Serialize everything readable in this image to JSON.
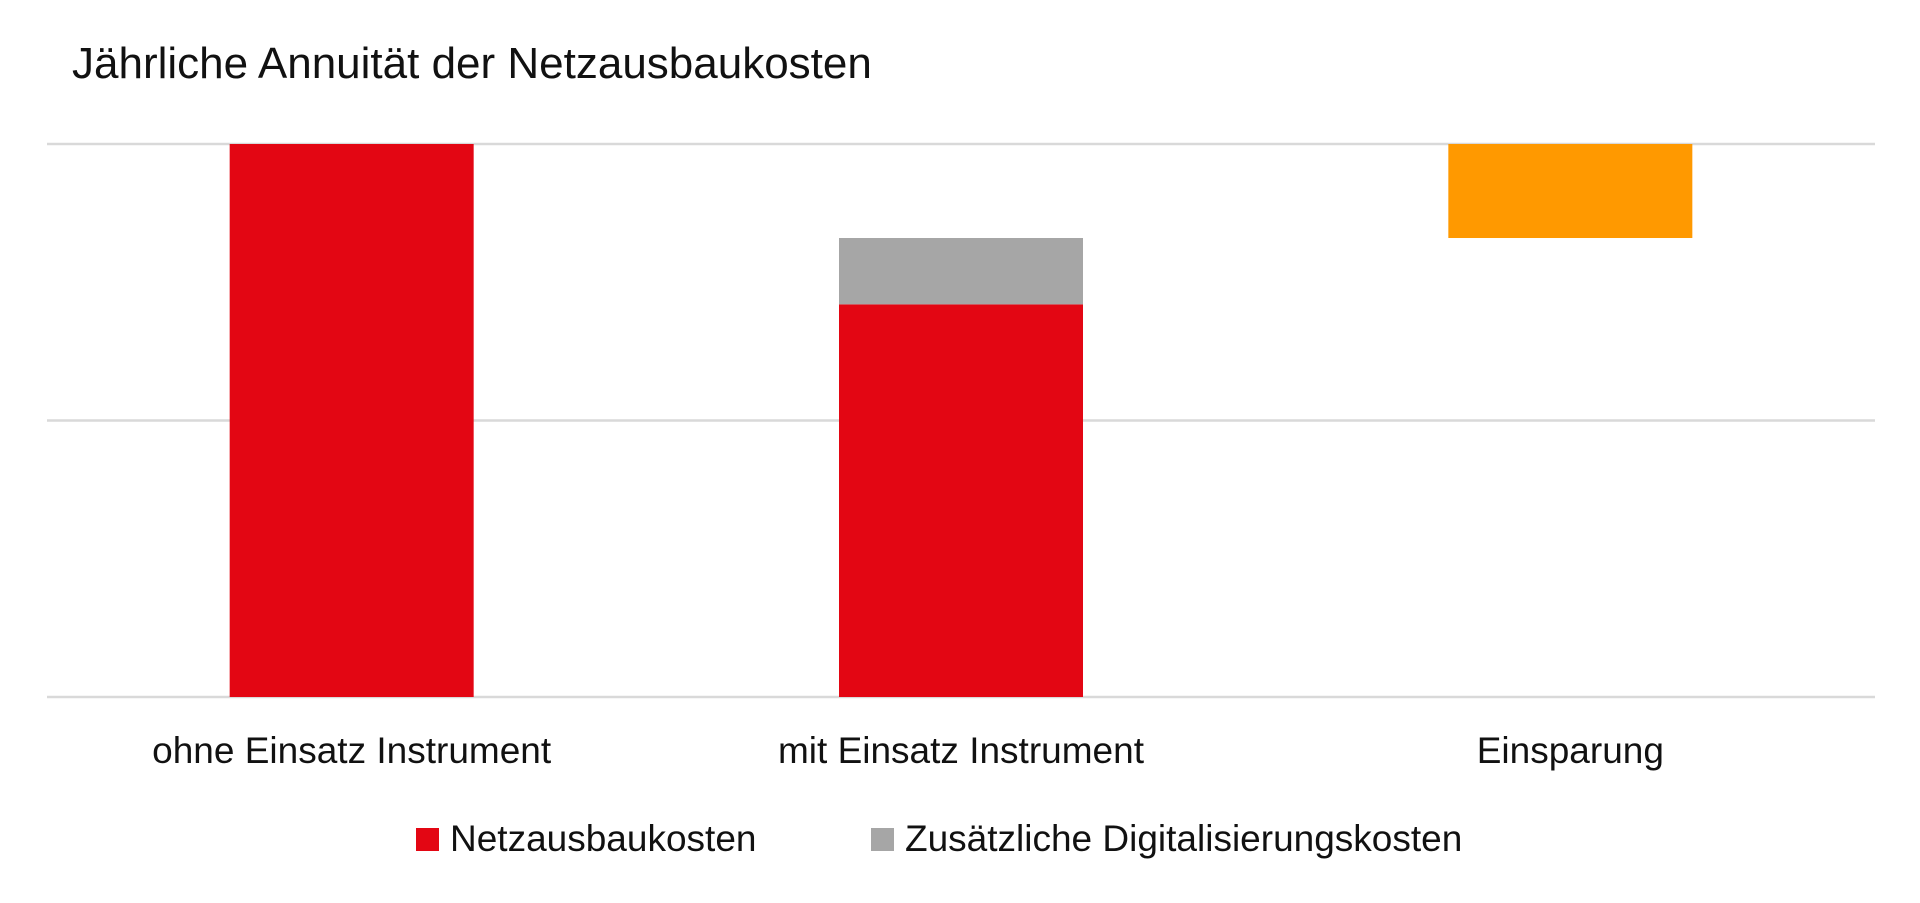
{
  "chart_data": {
    "type": "bar",
    "stacked": true,
    "waterfall": true,
    "title": "Jährliche Annuität der Netzausbaukosten",
    "xlabel": "",
    "ylabel": "",
    "categories": [
      "ohne Einsatz Instrument",
      "mit Einsatz Instrument",
      "Einsparung"
    ],
    "ylim": [
      0,
      100
    ],
    "y_axis_labels_shown": false,
    "grid": true,
    "gridlines": [
      0,
      50,
      100
    ],
    "series": [
      {
        "name": "Netzausbaukosten",
        "color": "#e30613",
        "values": [
          100,
          71,
          null
        ]
      },
      {
        "name": "Zusätzliche Digitalisierungskosten",
        "color": "#a6a6a6",
        "values": [
          null,
          12,
          null
        ]
      }
    ],
    "savings": {
      "category": "Einsparung",
      "from": 83,
      "to": 100,
      "color": "#ff9900",
      "in_legend": false
    },
    "legend": {
      "placement": "bottom",
      "entries": [
        "Netzausbaukosten",
        "Zusätzliche Digitalisierungskosten"
      ]
    }
  }
}
